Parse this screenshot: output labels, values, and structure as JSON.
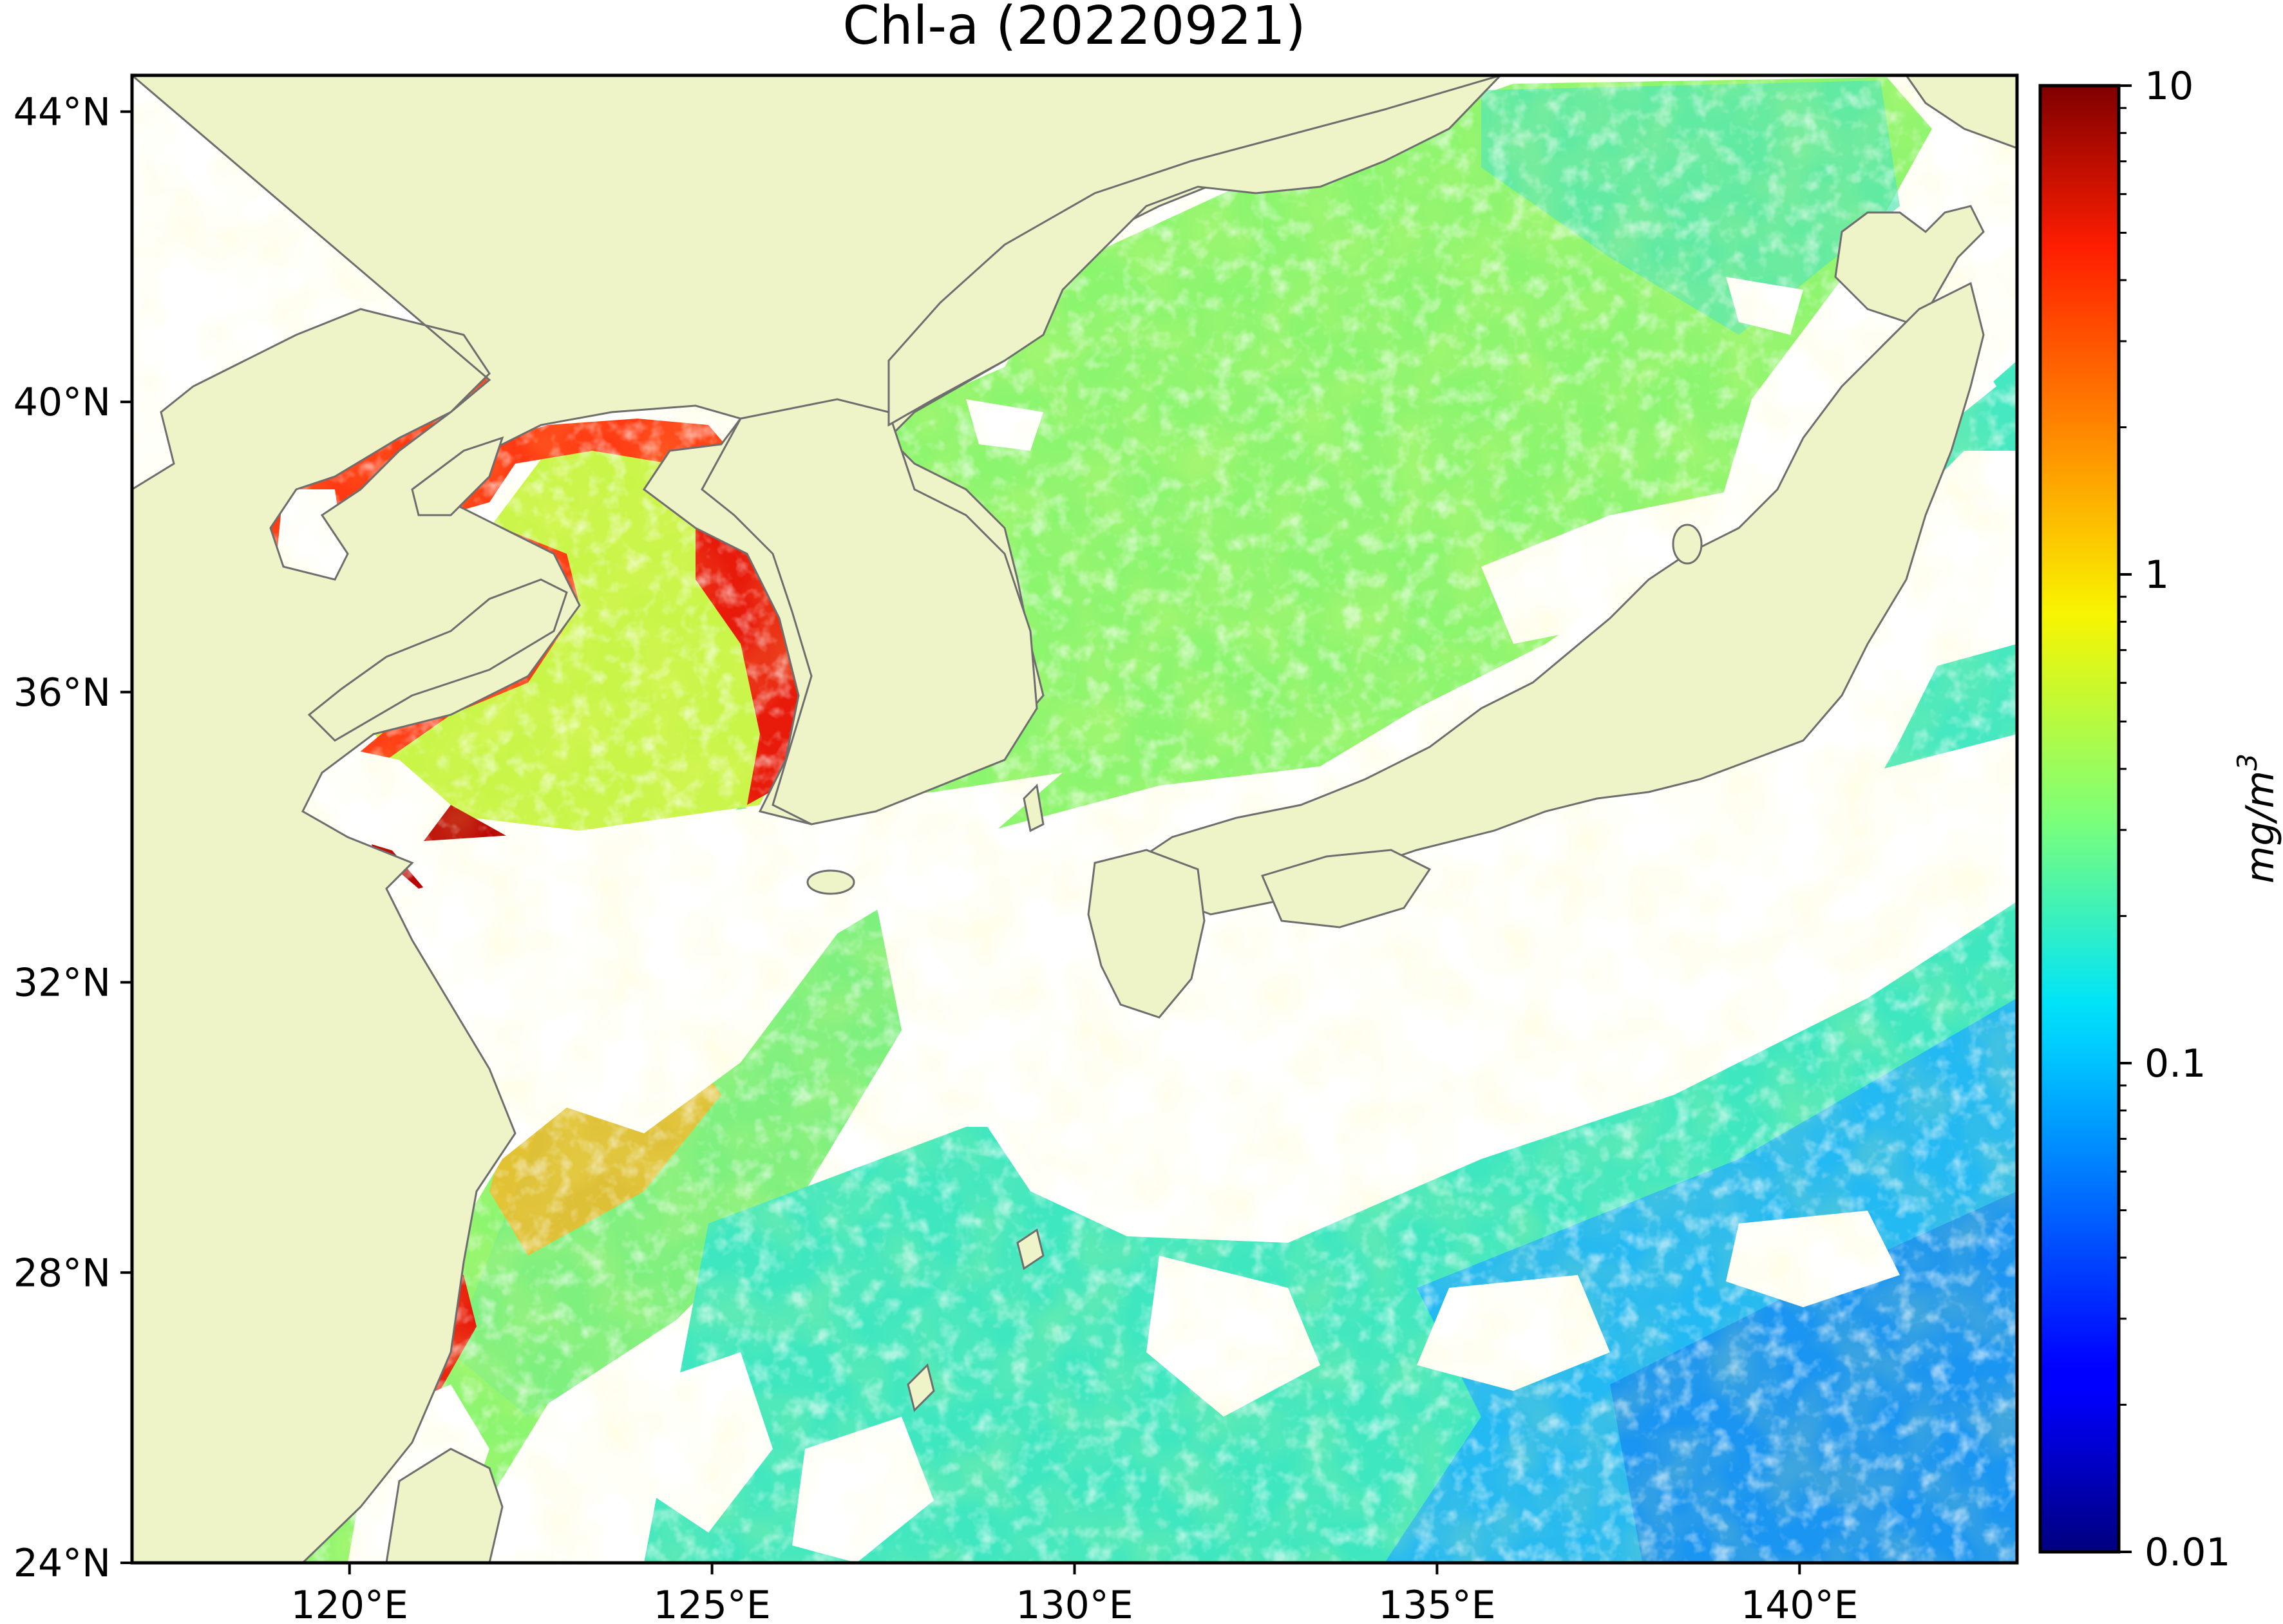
{
  "title": "Chl-a (20220921)",
  "map": {
    "lon_range": [
      117,
      143
    ],
    "lat_range": [
      24,
      44.5
    ],
    "x_ticks": [
      {
        "value": 120,
        "label": "120°E"
      },
      {
        "value": 125,
        "label": "125°E"
      },
      {
        "value": 130,
        "label": "130°E"
      },
      {
        "value": 135,
        "label": "135°E"
      },
      {
        "value": 140,
        "label": "140°E"
      }
    ],
    "y_ticks": [
      {
        "value": 44,
        "label": "44°N"
      },
      {
        "value": 40,
        "label": "40°N"
      },
      {
        "value": 36,
        "label": "36°N"
      },
      {
        "value": 32,
        "label": "32°N"
      },
      {
        "value": 28,
        "label": "28°N"
      },
      {
        "value": 24,
        "label": "24°N"
      }
    ],
    "land_color": "#eff3c8",
    "no_data_color": "#ffffff",
    "coastline_color": "#6e6e6e"
  },
  "colorbar": {
    "label": "mg/m",
    "label_superscript": "3",
    "scale": "log",
    "range": [
      0.01,
      10
    ],
    "colormap": "jet",
    "ticks": [
      {
        "value": 10,
        "label": "10"
      },
      {
        "value": 1,
        "label": "1"
      },
      {
        "value": 0.1,
        "label": "0.1"
      },
      {
        "value": 0.01,
        "label": "0.01"
      }
    ]
  }
}
